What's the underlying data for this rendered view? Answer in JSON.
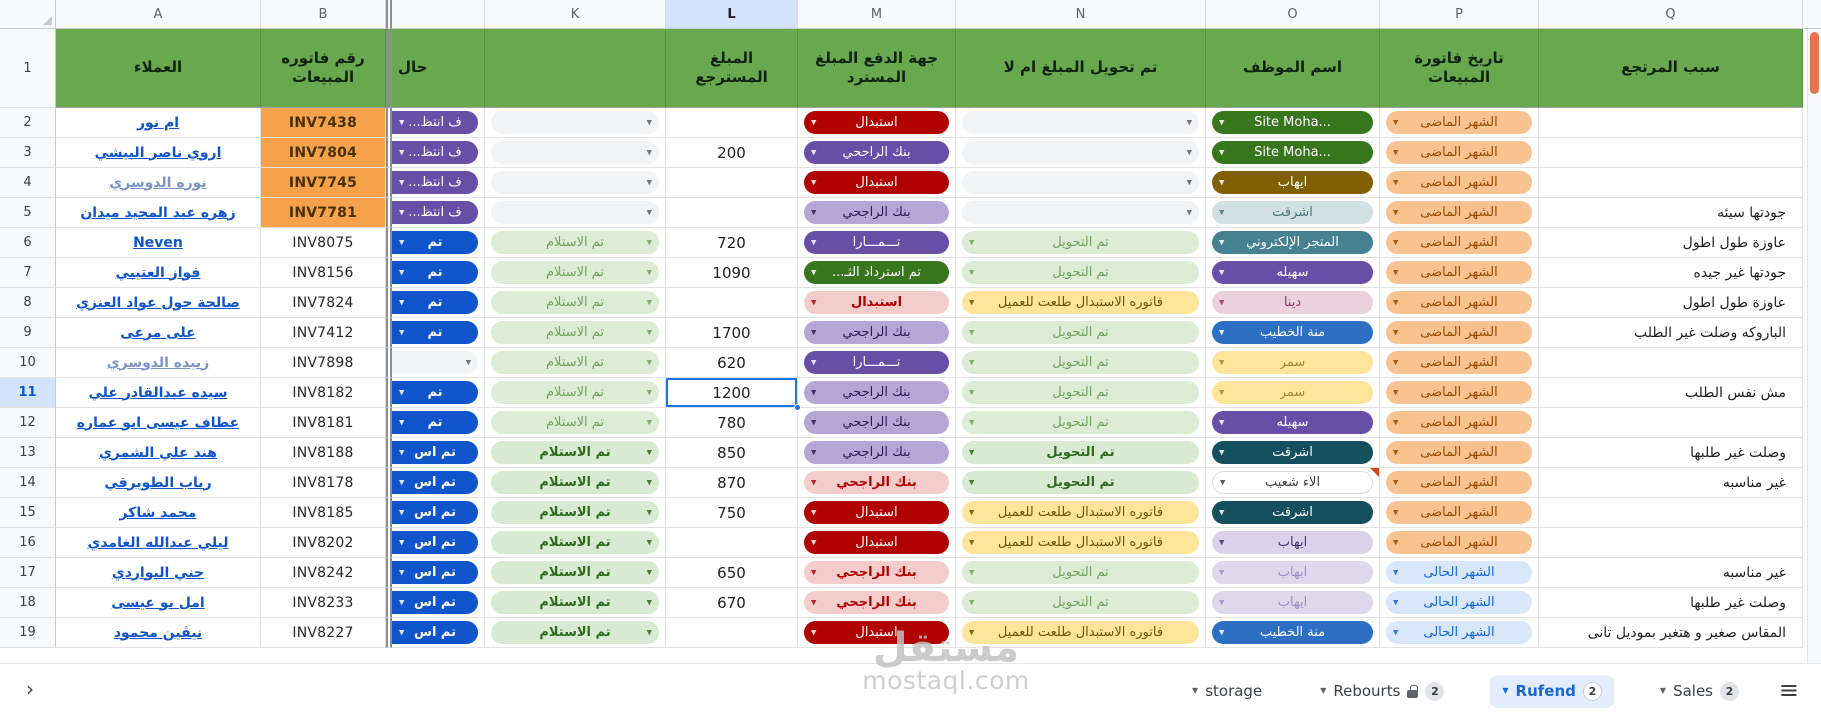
{
  "palette": {
    "header_green": "#6aa84f",
    "header_text": "#0f2410",
    "gridline": "#e2e2e2",
    "gutter_bg": "#f8f9fa",
    "letter_text": "#5f6368",
    "active_header_bg": "#d3e3fd",
    "selection_blue": "#1a73e8",
    "link_blue": "#1155cc",
    "link_visited": "#7d94c9",
    "invoice_orange": "#f5a24b",
    "invoice_text": "#4a3000",
    "marker_red": "#d0451b",
    "scrollbar_thumb": "#e8744f",
    "watermark_gray": "#c2c2c2",
    "tab_active_bg": "#e3edfd",
    "tab_active_fg": "#1967d2",
    "tab_fg": "#3c4043",
    "freeze_line": "#8a8f94"
  },
  "chip_styles": {
    "purpleDark": {
      "bg": "#674ea7",
      "fg": "#ffffff"
    },
    "purpleLight": {
      "bg": "#b4a7d6",
      "fg": "#2d1b52"
    },
    "pinkLight": {
      "bg": "#f4cccc",
      "fg": "#b10202",
      "bold": true
    },
    "redDark": {
      "bg": "#b10202",
      "fg": "#ffffff"
    },
    "blueDark": {
      "bg": "#1155cc",
      "fg": "#ffffff",
      "bold": true
    },
    "blueMed": {
      "bg": "#2d6fc2",
      "fg": "#ffffff"
    },
    "greenDark": {
      "bg": "#38761d",
      "fg": "#ffffff"
    },
    "teal": {
      "bg": "#45818e",
      "fg": "#ffffff"
    },
    "tealDark": {
      "bg": "#134f5c",
      "fg": "#ffffff"
    },
    "tealLight": {
      "bg": "#d0e0e3",
      "fg": "#4f767e"
    },
    "greenSoft": {
      "bg": "#ddecd5",
      "fg": "#71a35f"
    },
    "green": {
      "bg": "#d9ead3",
      "fg": "#2e6b1f",
      "bold": true
    },
    "olive": {
      "bg": "#7f6000",
      "fg": "#ffffff"
    },
    "lavender": {
      "bg": "#d9d2e9",
      "fg": "#43376b"
    },
    "lavenderSoft": {
      "bg": "#ded8ec",
      "fg": "#9a8fc2"
    },
    "pinkMed": {
      "bg": "#ead1dc",
      "fg": "#8d3a6c"
    },
    "yellow": {
      "bg": "#ffe599",
      "fg": "#6d5408"
    },
    "yellowSoft": {
      "bg": "#ffe599",
      "fg": "#a08a33"
    },
    "whiteChip": {
      "bg": "#ffffff",
      "fg": "#3c4043",
      "border": "#dadce0"
    },
    "orangeLight": {
      "bg": "#f8c291",
      "fg": "#9a4b00"
    },
    "blueLight": {
      "bg": "#d9e7fb",
      "fg": "#1967d2"
    },
    "empty": {
      "bg": "#f1f3f4",
      "fg": "#5f6368"
    }
  },
  "sheet": {
    "title_row_number": "1",
    "selection": {
      "row": "11",
      "column": "L"
    },
    "columns": [
      {
        "key": "customer",
        "letter": "A",
        "title": "العملاء"
      },
      {
        "key": "invoice",
        "letter": "B",
        "title": "رقم فاتوره المبيعات"
      },
      {
        "key": "status",
        "letter": "",
        "title": "حال"
      },
      {
        "key": "received",
        "letter": "K",
        "title": ""
      },
      {
        "key": "amount",
        "letter": "L",
        "title": "المبلغ المسترجع"
      },
      {
        "key": "payment",
        "letter": "M",
        "title": "جهة الدفع المبلغ المسترد"
      },
      {
        "key": "transfer",
        "letter": "N",
        "title": "تم تحويل المبلغ ام لا"
      },
      {
        "key": "employee",
        "letter": "O",
        "title": "اسم الموظف"
      },
      {
        "key": "invoice_date",
        "letter": "P",
        "title": "تاريخ فاتورة المبيعات"
      },
      {
        "key": "reason",
        "letter": "Q",
        "title": "سبب المرتجع"
      }
    ],
    "rows": [
      {
        "n": "2",
        "customer": {
          "text": "ام نور",
          "visited": false
        },
        "invoice": {
          "text": "INV7438",
          "highlight": true
        },
        "status": {
          "text": "ف انتظ...",
          "style": "purpleDark"
        },
        "received": {
          "empty": true
        },
        "amount": "",
        "payment": {
          "text": "استبدال",
          "style": "redDark"
        },
        "transfer": {
          "empty": true
        },
        "employee": {
          "text": "Site Moha...",
          "style": "greenDark"
        },
        "invoice_date": {
          "text": "الشهر الماضى",
          "style": "orangeLight"
        },
        "reason": ""
      },
      {
        "n": "3",
        "customer": {
          "text": "اروي ناصر البيشي",
          "visited": false
        },
        "invoice": {
          "text": "INV7804",
          "highlight": true
        },
        "status": {
          "text": "ف انتظ...",
          "style": "purpleDark"
        },
        "received": {
          "empty": true
        },
        "amount": "200",
        "payment": {
          "text": "بنك الراجحي",
          "style": "purpleDark"
        },
        "transfer": {
          "empty": true
        },
        "employee": {
          "text": "Site Moha...",
          "style": "greenDark"
        },
        "invoice_date": {
          "text": "الشهر الماضى",
          "style": "orangeLight"
        },
        "reason": ""
      },
      {
        "n": "4",
        "customer": {
          "text": "نوره الدوسري",
          "visited": true
        },
        "invoice": {
          "text": "INV7745",
          "highlight": true
        },
        "status": {
          "text": "ف انتظ...",
          "style": "purpleDark"
        },
        "received": {
          "empty": true
        },
        "amount": "",
        "payment": {
          "text": "استبدال",
          "style": "redDark"
        },
        "transfer": {
          "empty": true
        },
        "employee": {
          "text": "ايهاب",
          "style": "olive"
        },
        "invoice_date": {
          "text": "الشهر الماضى",
          "style": "orangeLight"
        },
        "reason": ""
      },
      {
        "n": "5",
        "customer": {
          "text": "زهره عبد المجيد ميدان",
          "visited": false
        },
        "invoice": {
          "text": "INV7781",
          "highlight": true
        },
        "status": {
          "text": "ف انتظ...",
          "style": "purpleDark"
        },
        "received": {
          "empty": true
        },
        "amount": "",
        "payment": {
          "text": "بنك الراجحي",
          "style": "purpleLight"
        },
        "transfer": {
          "empty": true
        },
        "employee": {
          "text": "اشرقت",
          "style": "tealLight"
        },
        "invoice_date": {
          "text": "الشهر الماضى",
          "style": "orangeLight"
        },
        "reason": "جودتها سيئه"
      },
      {
        "n": "6",
        "customer": {
          "text": "Neven",
          "visited": false
        },
        "invoice": {
          "text": "INV8075",
          "highlight": false
        },
        "status": {
          "text": "تم",
          "style": "blueDark"
        },
        "received": {
          "text": "تم الاستلام",
          "style": "greenSoft"
        },
        "amount": "720",
        "payment": {
          "text": "تـــمـــارا",
          "style": "purpleDark"
        },
        "transfer": {
          "text": "تم التحويل",
          "style": "greenSoft"
        },
        "employee": {
          "text": "المتجر الإلكتروني",
          "style": "teal"
        },
        "invoice_date": {
          "text": "الشهر الماضى",
          "style": "orangeLight"
        },
        "reason": "عاوزة طول اطول"
      },
      {
        "n": "7",
        "customer": {
          "text": "فواز العتيبي",
          "visited": false
        },
        "invoice": {
          "text": "INV8156",
          "highlight": false
        },
        "status": {
          "text": "تم",
          "style": "blueDark"
        },
        "received": {
          "text": "تم الاستلام",
          "style": "greenSoft"
        },
        "amount": "1090",
        "payment": {
          "text": "تم استرداد الثـ...",
          "style": "greenDark"
        },
        "transfer": {
          "text": "تم التحويل",
          "style": "greenSoft"
        },
        "employee": {
          "text": "سهيله",
          "style": "purpleDark"
        },
        "invoice_date": {
          "text": "الشهر الماضى",
          "style": "orangeLight"
        },
        "reason": "جودتها غير جيده"
      },
      {
        "n": "8",
        "customer": {
          "text": "صالحة حول عواد العنزي",
          "visited": false
        },
        "invoice": {
          "text": "INV7824",
          "highlight": false
        },
        "status": {
          "text": "تم",
          "style": "blueDark"
        },
        "received": {
          "text": "تم الاستلام",
          "style": "greenSoft"
        },
        "amount": "",
        "payment": {
          "text": "استبدال",
          "style": "pinkLight"
        },
        "transfer": {
          "text": "فاتوره الاستبدال طلعت للعميل",
          "style": "yellow"
        },
        "employee": {
          "text": "دينا",
          "style": "pinkMed"
        },
        "invoice_date": {
          "text": "الشهر الماضى",
          "style": "orangeLight"
        },
        "reason": "عاوزة طول اطول"
      },
      {
        "n": "9",
        "customer": {
          "text": "على مرعى",
          "visited": false
        },
        "invoice": {
          "text": "INV7412",
          "highlight": false
        },
        "status": {
          "text": "تم",
          "style": "blueDark"
        },
        "received": {
          "text": "تم الاستلام",
          "style": "greenSoft"
        },
        "amount": "1700",
        "payment": {
          "text": "بنك الراجحي",
          "style": "purpleLight"
        },
        "transfer": {
          "text": "تم التحويل",
          "style": "greenSoft"
        },
        "employee": {
          "text": "منة الخطيب",
          "style": "blueMed"
        },
        "invoice_date": {
          "text": "الشهر الماضى",
          "style": "orangeLight"
        },
        "reason": "الباروكه وصلت غير الطلب"
      },
      {
        "n": "10",
        "customer": {
          "text": "زبيده الدوسري",
          "visited": true
        },
        "invoice": {
          "text": "INV7898",
          "highlight": false
        },
        "status": {
          "empty": true
        },
        "received": {
          "text": "تم الاستلام",
          "style": "greenSoft"
        },
        "amount": "620",
        "payment": {
          "text": "تـــمـــارا",
          "style": "purpleDark"
        },
        "transfer": {
          "text": "تم التحويل",
          "style": "greenSoft"
        },
        "employee": {
          "text": "سمر",
          "style": "yellowSoft"
        },
        "invoice_date": {
          "text": "الشهر الماضى",
          "style": "orangeLight"
        },
        "reason": ""
      },
      {
        "n": "11",
        "customer": {
          "text": "سيده عبدالقادر علي",
          "visited": false
        },
        "invoice": {
          "text": "INV8182",
          "highlight": false
        },
        "status": {
          "text": "تم",
          "style": "blueDark"
        },
        "received": {
          "text": "تم الاستلام",
          "style": "greenSoft"
        },
        "amount": "1200",
        "payment": {
          "text": "بنك الراجحي",
          "style": "purpleLight"
        },
        "transfer": {
          "text": "تم التحويل",
          "style": "greenSoft"
        },
        "employee": {
          "text": "سمر",
          "style": "yellowSoft"
        },
        "invoice_date": {
          "text": "الشهر الماضى",
          "style": "orangeLight"
        },
        "reason": "مش نفس الطلب"
      },
      {
        "n": "12",
        "customer": {
          "text": "عطاف عيسى ابو عماره",
          "visited": false
        },
        "invoice": {
          "text": "INV8181",
          "highlight": false
        },
        "status": {
          "text": "تم",
          "style": "blueDark"
        },
        "received": {
          "text": "تم الاستلام",
          "style": "greenSoft"
        },
        "amount": "780",
        "payment": {
          "text": "بنك الراجحي",
          "style": "purpleLight"
        },
        "transfer": {
          "text": "تم التحويل",
          "style": "greenSoft"
        },
        "employee": {
          "text": "سهيله",
          "style": "purpleDark"
        },
        "invoice_date": {
          "text": "الشهر الماضى",
          "style": "orangeLight"
        },
        "reason": ""
      },
      {
        "n": "13",
        "customer": {
          "text": "هند علي الشمري",
          "visited": false
        },
        "invoice": {
          "text": "INV8188",
          "highlight": false
        },
        "status": {
          "text": "تم اس",
          "style": "blueDark"
        },
        "received": {
          "text": "تم الاستلام",
          "style": "green"
        },
        "amount": "850",
        "payment": {
          "text": "بنك الراجحي",
          "style": "purpleLight"
        },
        "transfer": {
          "text": "تم التحويل",
          "style": "green"
        },
        "employee": {
          "text": "اشرقت",
          "style": "tealDark"
        },
        "invoice_date": {
          "text": "الشهر الماضى",
          "style": "orangeLight"
        },
        "reason": "وصلت غير طلبها"
      },
      {
        "n": "14",
        "customer": {
          "text": "رباب الطويرقي",
          "visited": false
        },
        "invoice": {
          "text": "INV8178",
          "highlight": false
        },
        "status": {
          "text": "تم اس",
          "style": "blueDark"
        },
        "received": {
          "text": "تم الاستلام",
          "style": "green"
        },
        "amount": "870",
        "payment": {
          "text": "بنك الراجحي",
          "style": "pinkLight"
        },
        "transfer": {
          "text": "تم التحويل",
          "style": "green"
        },
        "employee": {
          "text": "الاء شعيب",
          "style": "whiteChip",
          "marker": true
        },
        "invoice_date": {
          "text": "الشهر الماضى",
          "style": "orangeLight"
        },
        "reason": "غير مناسبه"
      },
      {
        "n": "15",
        "customer": {
          "text": "محمد شاكر",
          "visited": false
        },
        "invoice": {
          "text": "INV8185",
          "highlight": false
        },
        "status": {
          "text": "تم اس",
          "style": "blueDark"
        },
        "received": {
          "text": "تم الاستلام",
          "style": "green"
        },
        "amount": "750",
        "payment": {
          "text": "استبدال",
          "style": "redDark"
        },
        "transfer": {
          "text": "فاتوره الاستبدال طلعت للعميل",
          "style": "yellow"
        },
        "employee": {
          "text": "اشرقت",
          "style": "tealDark"
        },
        "invoice_date": {
          "text": "الشهر الماضى",
          "style": "orangeLight"
        },
        "reason": ""
      },
      {
        "n": "16",
        "customer": {
          "text": "ليلي عبدالله الغامدي",
          "visited": false
        },
        "invoice": {
          "text": "INV8202",
          "highlight": false
        },
        "status": {
          "text": "تم اس",
          "style": "blueDark"
        },
        "received": {
          "text": "تم الاستلام",
          "style": "green"
        },
        "amount": "",
        "payment": {
          "text": "استبدال",
          "style": "redDark"
        },
        "transfer": {
          "text": "فاتوره الاستبدال طلعت للعميل",
          "style": "yellow"
        },
        "employee": {
          "text": "ايهاب",
          "style": "lavender"
        },
        "invoice_date": {
          "text": "الشهر الماضى",
          "style": "orangeLight"
        },
        "reason": ""
      },
      {
        "n": "17",
        "customer": {
          "text": "جني البواردي",
          "visited": false
        },
        "invoice": {
          "text": "INV8242",
          "highlight": false
        },
        "status": {
          "text": "تم اس",
          "style": "blueDark"
        },
        "received": {
          "text": "تم الاستلام",
          "style": "green"
        },
        "amount": "650",
        "payment": {
          "text": "بنك الراجحي",
          "style": "pinkLight"
        },
        "transfer": {
          "text": "تم التحويل",
          "style": "greenSoft"
        },
        "employee": {
          "text": "ايهاب",
          "style": "lavenderSoft"
        },
        "invoice_date": {
          "text": "الشهر الحالى",
          "style": "blueLight"
        },
        "reason": "غير مناسبه"
      },
      {
        "n": "18",
        "customer": {
          "text": "امل بو عيسى",
          "visited": false
        },
        "invoice": {
          "text": "INV8233",
          "highlight": false
        },
        "status": {
          "text": "تم اس",
          "style": "blueDark"
        },
        "received": {
          "text": "تم الاستلام",
          "style": "green"
        },
        "amount": "670",
        "payment": {
          "text": "بنك الراجحي",
          "style": "pinkLight"
        },
        "transfer": {
          "text": "تم التحويل",
          "style": "greenSoft"
        },
        "employee": {
          "text": "ايهاب",
          "style": "lavenderSoft"
        },
        "invoice_date": {
          "text": "الشهر الحالى",
          "style": "blueLight"
        },
        "reason": "وصلت غير طلبها"
      },
      {
        "n": "19",
        "customer": {
          "text": "نيڤين محمود",
          "visited": false
        },
        "invoice": {
          "text": "INV8227",
          "highlight": false
        },
        "status": {
          "text": "تم اس",
          "style": "blueDark"
        },
        "received": {
          "text": "تم الاستلام",
          "style": "green"
        },
        "amount": "",
        "payment": {
          "text": "استبدال",
          "style": "redDark"
        },
        "transfer": {
          "text": "فاتوره الاستبدال طلعت للعميل",
          "style": "yellow"
        },
        "employee": {
          "text": "منة الخطيب",
          "style": "blueMed"
        },
        "invoice_date": {
          "text": "الشهر الحالى",
          "style": "blueLight"
        },
        "reason": "المقاس صغير و هتغير بموديل تانى"
      }
    ]
  },
  "tabbar": {
    "nav_arrow": "›",
    "menu_icon": "≡",
    "tabs": [
      {
        "label": "storage",
        "active": false,
        "locked": false,
        "badge": ""
      },
      {
        "label": "Rebourts",
        "active": false,
        "locked": true,
        "badge": "2"
      },
      {
        "label": "Rufend",
        "active": true,
        "locked": false,
        "badge": "2"
      },
      {
        "label": "Sales",
        "active": false,
        "locked": false,
        "badge": "2"
      }
    ]
  },
  "watermark": {
    "line1": "مستقل",
    "line2": "mostaql.com"
  }
}
